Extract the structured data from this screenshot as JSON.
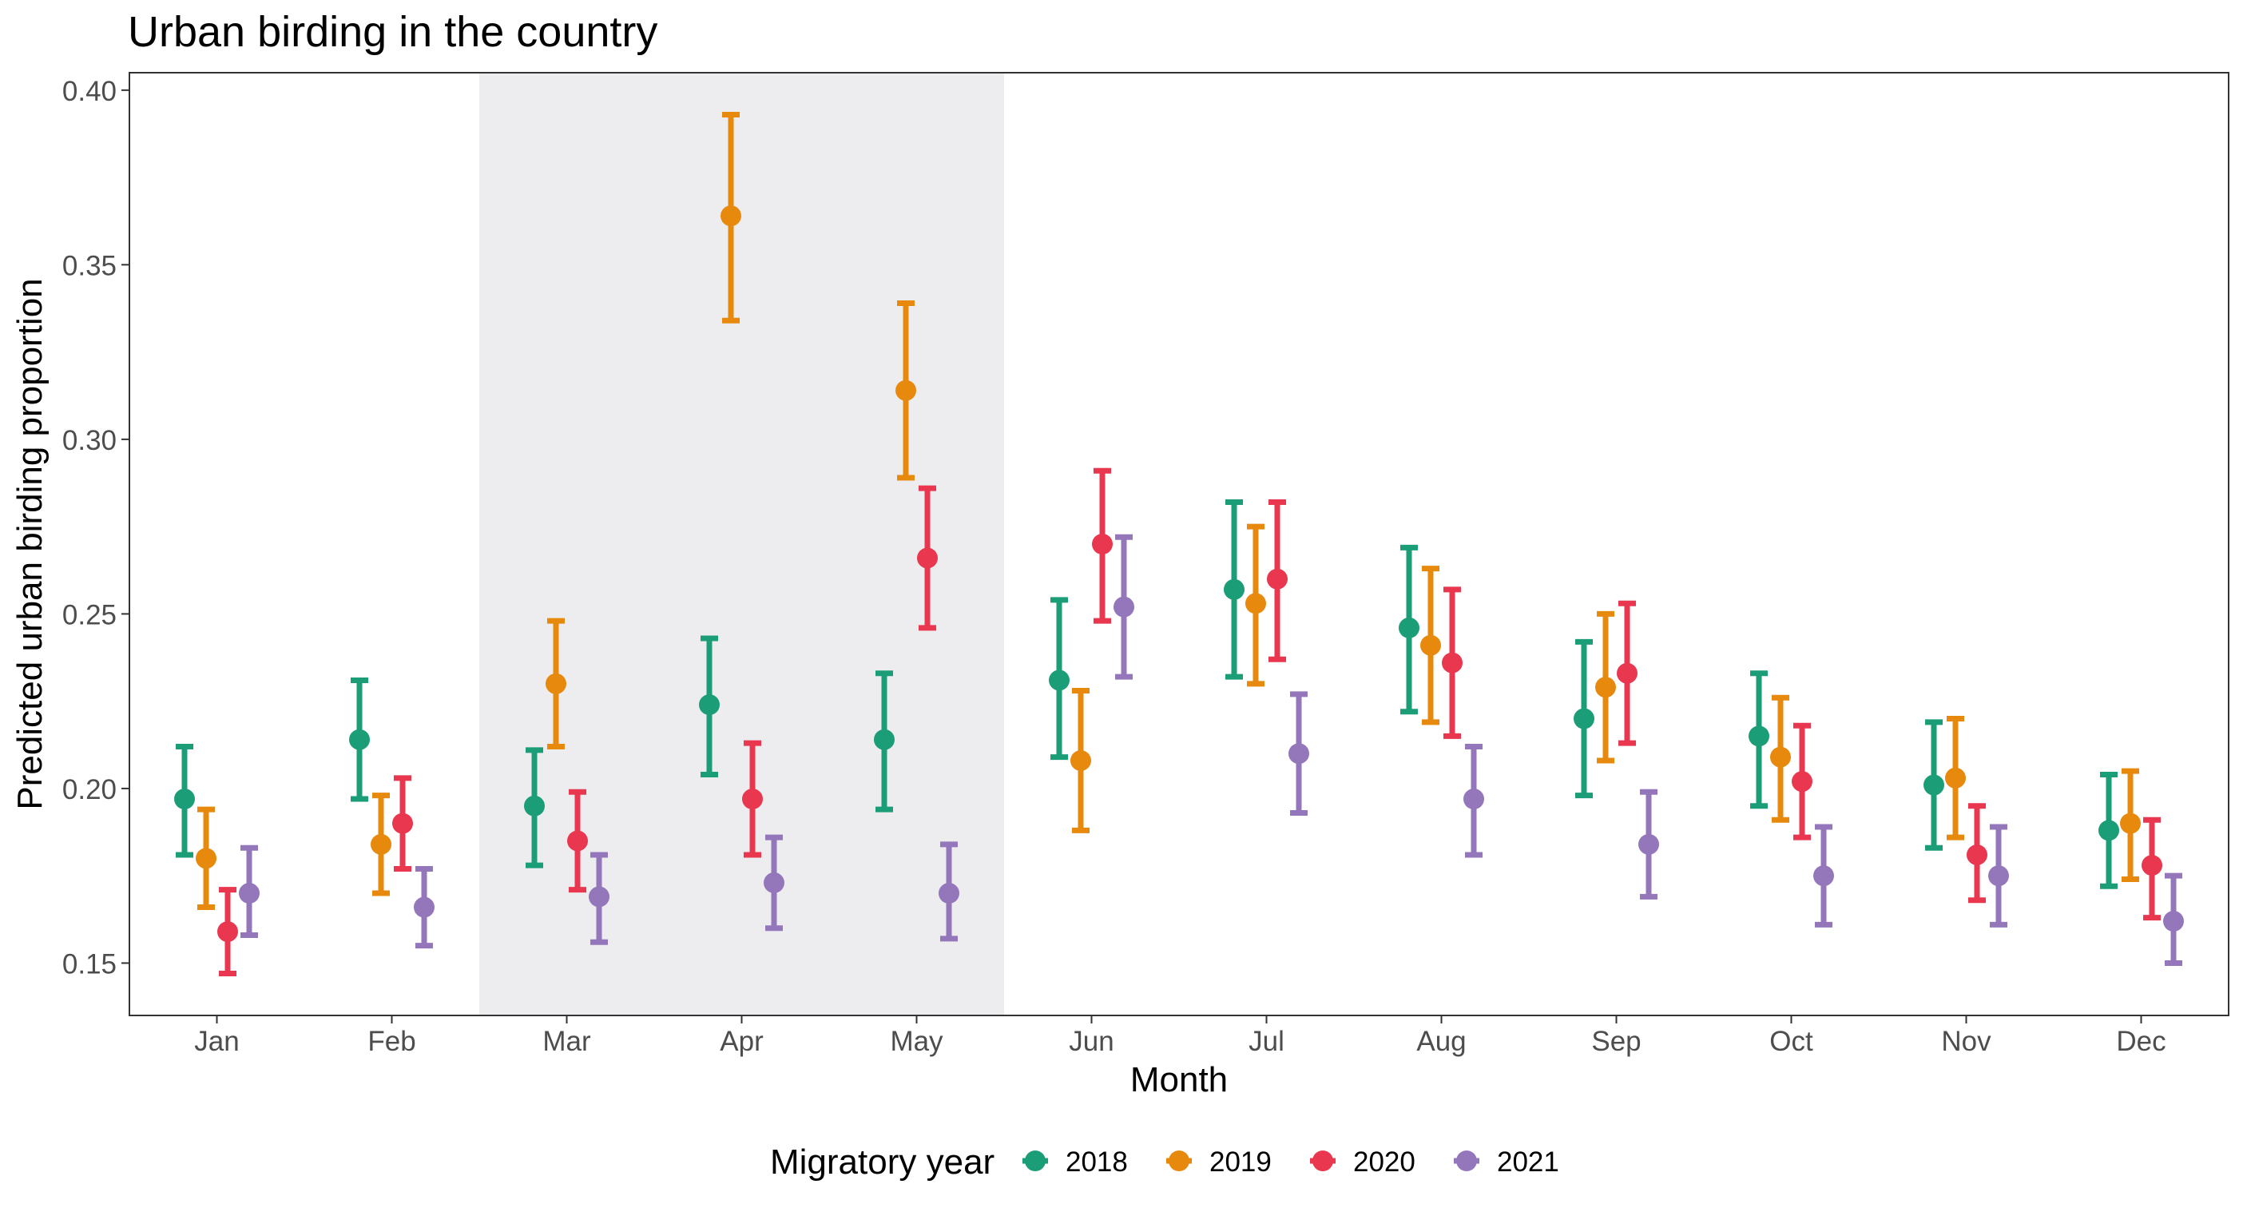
{
  "chart_data": {
    "type": "scatter",
    "title": "Urban birding in the country",
    "xlabel": "Month",
    "ylabel": "Predicted urban birding proportion",
    "categories": [
      "Jan",
      "Feb",
      "Mar",
      "Apr",
      "May",
      "Jun",
      "Jul",
      "Aug",
      "Sep",
      "Oct",
      "Nov",
      "Dec"
    ],
    "ylim": [
      0.135,
      0.405
    ],
    "yticks": [
      0.15,
      0.2,
      0.25,
      0.3,
      0.35,
      0.4
    ],
    "ytick_labels": [
      "0.15",
      "0.20",
      "0.25",
      "0.30",
      "0.35",
      "0.40"
    ],
    "shaded_months": [
      "Mar",
      "Apr",
      "May"
    ],
    "shade_color": "#ededf0",
    "grid": false,
    "legend": {
      "title": "Migratory year",
      "position": "bottom"
    },
    "series": [
      {
        "name": "2018",
        "color": "#1b9e77",
        "values": [
          0.197,
          0.214,
          0.195,
          0.224,
          0.214,
          0.231,
          0.257,
          0.246,
          0.22,
          0.215,
          0.201,
          0.188
        ],
        "lower": [
          0.181,
          0.197,
          0.178,
          0.204,
          0.194,
          0.209,
          0.232,
          0.222,
          0.198,
          0.195,
          0.183,
          0.172
        ],
        "upper": [
          0.212,
          0.231,
          0.211,
          0.243,
          0.233,
          0.254,
          0.282,
          0.269,
          0.242,
          0.233,
          0.219,
          0.204
        ],
        "months": [
          "Jan",
          "Feb",
          "Mar",
          "Apr",
          "May",
          "Jun",
          "Jul",
          "Aug",
          "Sep",
          "Oct",
          "Nov",
          "Dec"
        ]
      },
      {
        "name": "2019",
        "color": "#e6890c",
        "values": [
          0.18,
          0.184,
          0.23,
          0.364,
          0.314,
          0.208,
          0.253,
          0.241,
          0.229,
          0.209,
          0.203,
          0.19
        ],
        "lower": [
          0.166,
          0.17,
          0.212,
          0.334,
          0.289,
          0.188,
          0.23,
          0.219,
          0.208,
          0.191,
          0.186,
          0.174
        ],
        "upper": [
          0.194,
          0.198,
          0.248,
          0.393,
          0.339,
          0.228,
          0.275,
          0.263,
          0.25,
          0.226,
          0.22,
          0.205
        ],
        "months": [
          "Jan",
          "Feb",
          "Mar",
          "Apr",
          "May",
          "Jun",
          "Jul",
          "Aug",
          "Sep",
          "Oct",
          "Nov",
          "Dec"
        ]
      },
      {
        "name": "2020",
        "color": "#e8374f",
        "values": [
          0.159,
          0.19,
          0.185,
          0.197,
          0.266,
          0.27,
          0.26,
          0.236,
          0.233,
          0.202,
          0.181,
          0.178
        ],
        "lower": [
          0.147,
          0.177,
          0.171,
          0.181,
          0.246,
          0.248,
          0.237,
          0.215,
          0.213,
          0.186,
          0.168,
          0.163
        ],
        "upper": [
          0.171,
          0.203,
          0.199,
          0.213,
          0.286,
          0.291,
          0.282,
          0.257,
          0.253,
          0.218,
          0.195,
          0.191
        ],
        "months": [
          "Jan",
          "Feb",
          "Mar",
          "Apr",
          "May",
          "Jun",
          "Jul",
          "Aug",
          "Sep",
          "Oct",
          "Nov",
          "Dec"
        ]
      },
      {
        "name": "2021",
        "color": "#9476bb",
        "values": [
          0.17,
          0.166,
          0.169,
          0.173,
          0.17,
          0.252,
          0.21,
          0.197,
          0.184,
          0.175,
          0.175,
          0.162
        ],
        "lower": [
          0.158,
          0.155,
          0.156,
          0.16,
          0.157,
          0.232,
          0.193,
          0.181,
          0.169,
          0.161,
          0.161,
          0.15
        ],
        "upper": [
          0.183,
          0.177,
          0.181,
          0.186,
          0.184,
          0.272,
          0.227,
          0.212,
          0.199,
          0.189,
          0.189,
          0.175
        ],
        "months": [
          "Jan",
          "Feb",
          "Mar",
          "Apr",
          "May",
          "Jun",
          "Jul",
          "Aug",
          "Sep",
          "Oct",
          "Nov",
          "Dec"
        ]
      }
    ]
  }
}
